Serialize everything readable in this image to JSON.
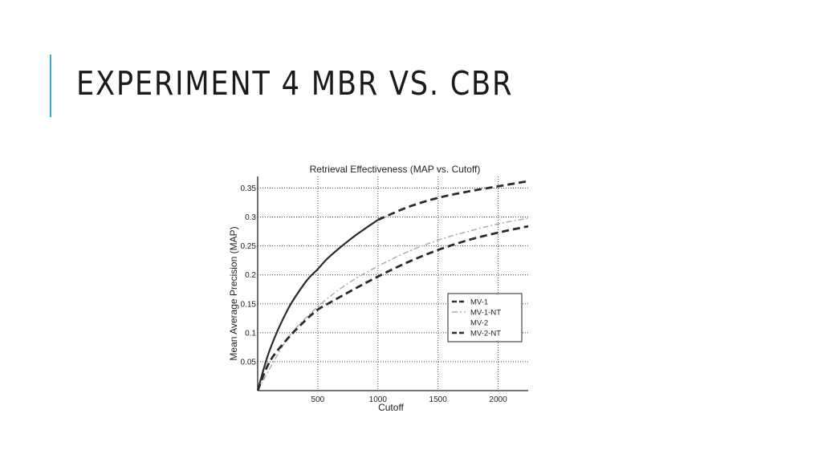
{
  "slide": {
    "title": "EXPERIMENT 4 MBR VS. CBR"
  },
  "colors": {
    "accent": "#3fa9c9",
    "ink": "#2b2b2b",
    "light_series": "#a8a8a8"
  },
  "chart_data": {
    "type": "line",
    "title": "Retrieval Effectiveness (MAP vs. Cutoff)",
    "xlabel": "Cutoff",
    "ylabel": "Mean Average Precision (MAP)",
    "xlim": [
      0,
      2250
    ],
    "ylim": [
      0,
      0.37
    ],
    "xticks": [
      500,
      1000,
      1500,
      2000
    ],
    "yticks": [
      0.05,
      0.1,
      0.15,
      0.2,
      0.25,
      0.3,
      0.35
    ],
    "grid": true,
    "legend_position": "bottom-right",
    "series": [
      {
        "name": "MV-1",
        "style": "dashed",
        "color": "#2b2b2b",
        "x": [
          1000,
          1250,
          1500,
          1750,
          2000,
          2250
        ],
        "y": [
          0.295,
          0.317,
          0.333,
          0.344,
          0.353,
          0.362
        ]
      },
      {
        "name": "MV-1-NT",
        "style": "dashdot-light",
        "color": "#a8a8a8",
        "x": [
          0,
          250,
          500,
          750,
          1000,
          1250,
          1500,
          1750,
          2000,
          2250
        ],
        "y": [
          0,
          0.09,
          0.145,
          0.185,
          0.215,
          0.24,
          0.26,
          0.275,
          0.288,
          0.298
        ]
      },
      {
        "name": "MV-2",
        "style": "solid",
        "color": "#2b2b2b",
        "x": [
          0,
          100,
          250,
          400,
          500,
          600,
          800,
          1000
        ],
        "y": [
          0,
          0.07,
          0.14,
          0.188,
          0.21,
          0.232,
          0.266,
          0.295
        ]
      },
      {
        "name": "MV-2-NT",
        "style": "dashed",
        "color": "#2b2b2b",
        "x": [
          0,
          100,
          250,
          400,
          500,
          600,
          800,
          1000,
          1250,
          1500,
          1750,
          2000,
          2250
        ],
        "y": [
          0,
          0.05,
          0.09,
          0.122,
          0.14,
          0.152,
          0.175,
          0.197,
          0.222,
          0.243,
          0.26,
          0.273,
          0.284
        ]
      }
    ]
  }
}
